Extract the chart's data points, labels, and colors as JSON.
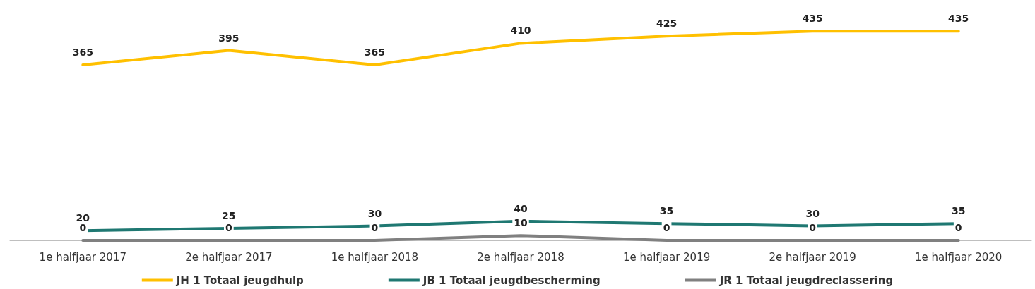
{
  "chart_data": {
    "type": "line",
    "categories": [
      "1e halfjaar 2017",
      "2e halfjaar 2017",
      "1e halfjaar 2018",
      "2e halfjaar 2018",
      "1e halfjaar 2019",
      "2e halfjaar 2019",
      "1e halfjaar 2020"
    ],
    "series": [
      {
        "name": "JH 1 Totaal jeugdhulp",
        "color": "#ffc000",
        "values": [
          365,
          395,
          365,
          410,
          425,
          435,
          435
        ]
      },
      {
        "name": "JB 1 Totaal jeugdbescherming",
        "color": "#1f7872",
        "values": [
          20,
          25,
          30,
          40,
          35,
          30,
          35
        ]
      },
      {
        "name": "JR 1 Totaal jeugdreclassering",
        "color": "#808080",
        "values": [
          0,
          0,
          0,
          10,
          0,
          0,
          0
        ]
      }
    ],
    "data_labels": true,
    "legend": "bottom",
    "marker": "none",
    "tick_labels": "x"
  }
}
